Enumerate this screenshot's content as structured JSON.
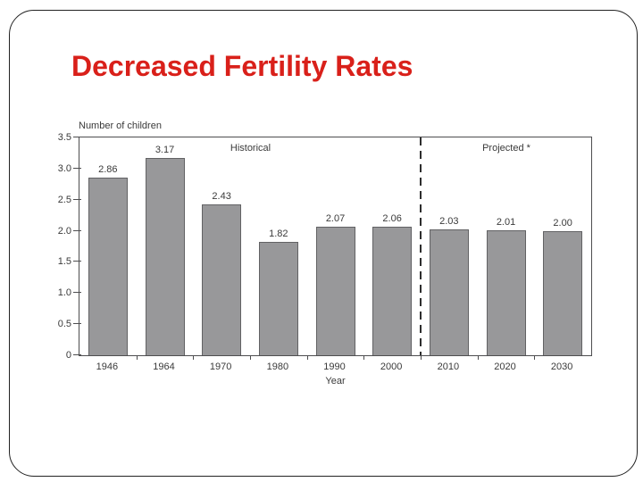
{
  "slide": {
    "title": "Decreased Fertility Rates",
    "title_color": "#d9201a",
    "background_color": "#ffffff",
    "border_color": "#222222"
  },
  "chart_data": {
    "type": "bar",
    "title": "",
    "axis_caption": "Number of children",
    "xlabel": "Year",
    "categories": [
      "1946",
      "1964",
      "1970",
      "1980",
      "1990",
      "2000",
      "2010",
      "2020",
      "2030"
    ],
    "values": [
      2.86,
      3.17,
      2.43,
      1.82,
      2.07,
      2.06,
      2.03,
      2.01,
      2.0
    ],
    "bar_value_labels": [
      "2.86",
      "3.17",
      "2.43",
      "1.82",
      "2.07",
      "2.06",
      "2.03",
      "2.01",
      "2.00"
    ],
    "ylim": [
      0,
      3.5
    ],
    "yticks": [
      3.5,
      3.0,
      2.5,
      2.0,
      1.5,
      1.0,
      0.5,
      0
    ],
    "ytick_labels": [
      "3.5",
      "3.0",
      "2.5",
      "2.0",
      "1.5",
      "1.0",
      "0.5",
      "0"
    ],
    "annotations": [
      {
        "text": "Historical",
        "region": "historical"
      },
      {
        "text": "Projected *",
        "region": "projected"
      }
    ],
    "separator": {
      "after_category_index": 5,
      "style": "dashed"
    },
    "bar_color": "#98989a",
    "bar_border_color": "#626264",
    "grid": false,
    "legend": false
  }
}
